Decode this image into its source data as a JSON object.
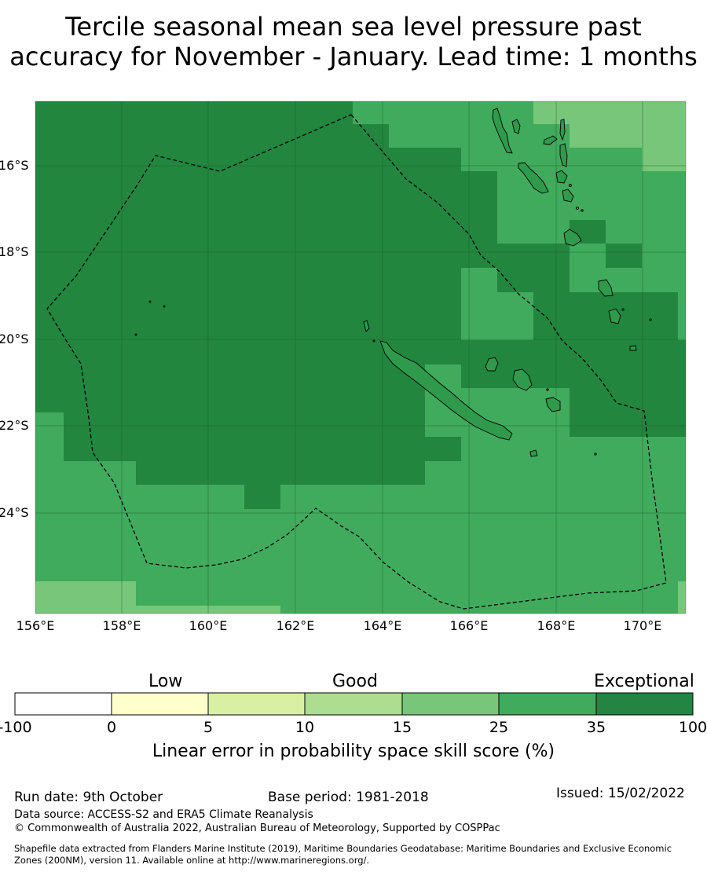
{
  "title_line1": "Tercile seasonal mean sea level pressure past",
  "title_line2": "accuracy for November - January. Lead time: 1 months",
  "map": {
    "lat_labels": [
      "16°S",
      "18°S",
      "20°S",
      "22°S",
      "24°S"
    ],
    "lon_labels": [
      "156°E",
      "158°E",
      "160°E",
      "162°E",
      "164°E",
      "166°E",
      "168°E",
      "170°E"
    ],
    "colors": {
      "exceptional": "#22863f",
      "band_25_35": "#41ab5d",
      "band_15_25": "#78c679",
      "boundary": "#000000"
    }
  },
  "legend": {
    "categories": [
      "Low",
      "Good",
      "Exceptional"
    ],
    "ticks": [
      "-100",
      "0",
      "5",
      "10",
      "15",
      "25",
      "35",
      "100"
    ],
    "colors": [
      "#ffffff",
      "#ffffcc",
      "#d9f0a3",
      "#addd8e",
      "#78c679",
      "#41ab5d",
      "#238443"
    ],
    "label": "Linear error in probability space skill score (%)"
  },
  "footer": {
    "run_date": "Run date: 9th October",
    "base_period": "Base period: 1981-2018",
    "issued": "Issued: 15/02/2022",
    "data_source": "Data source: ACCESS-S2 and ERA5 Climate Reanalysis",
    "copyright": "© Commonwealth of Australia 2022, Australian Bureau of Meteorology, Supported by COSPPac",
    "shapefile_line1": "Shapefile data extracted from Flanders Marine Institute (2019), Maritime Boundaries Geodatabase: Maritime Boundaries and Exclusive Economic",
    "shapefile_line2": "Zones (200NM), version 11. Available online at http://www.marineregions.org/."
  }
}
